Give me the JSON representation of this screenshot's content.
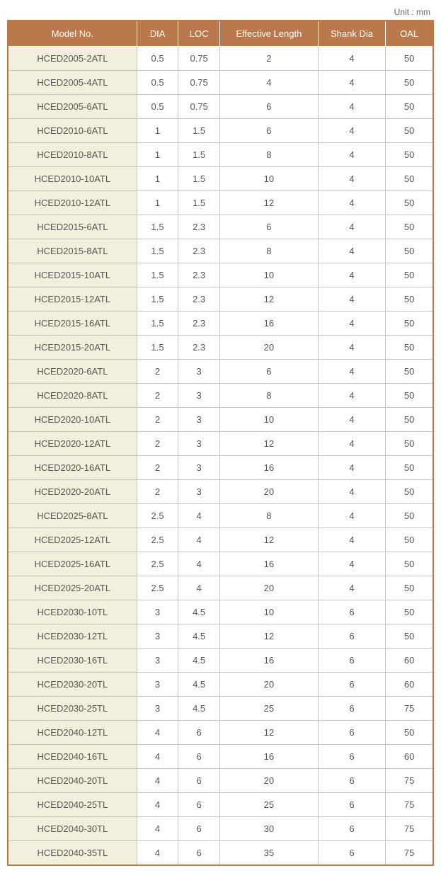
{
  "unit_label": "Unit : mm",
  "columns": [
    "Model No.",
    "DIA",
    "LOC",
    "Effective Length",
    "Shank Dia",
    "OAL"
  ],
  "rows": [
    [
      "HCED2005-2ATL",
      "0.5",
      "0.75",
      "2",
      "4",
      "50"
    ],
    [
      "HCED2005-4ATL",
      "0.5",
      "0.75",
      "4",
      "4",
      "50"
    ],
    [
      "HCED2005-6ATL",
      "0.5",
      "0.75",
      "6",
      "4",
      "50"
    ],
    [
      "HCED2010-6ATL",
      "1",
      "1.5",
      "6",
      "4",
      "50"
    ],
    [
      "HCED2010-8ATL",
      "1",
      "1.5",
      "8",
      "4",
      "50"
    ],
    [
      "HCED2010-10ATL",
      "1",
      "1.5",
      "10",
      "4",
      "50"
    ],
    [
      "HCED2010-12ATL",
      "1",
      "1.5",
      "12",
      "4",
      "50"
    ],
    [
      "HCED2015-6ATL",
      "1.5",
      "2.3",
      "6",
      "4",
      "50"
    ],
    [
      "HCED2015-8ATL",
      "1.5",
      "2.3",
      "8",
      "4",
      "50"
    ],
    [
      "HCED2015-10ATL",
      "1.5",
      "2.3",
      "10",
      "4",
      "50"
    ],
    [
      "HCED2015-12ATL",
      "1.5",
      "2.3",
      "12",
      "4",
      "50"
    ],
    [
      "HCED2015-16ATL",
      "1.5",
      "2.3",
      "16",
      "4",
      "50"
    ],
    [
      "HCED2015-20ATL",
      "1.5",
      "2.3",
      "20",
      "4",
      "50"
    ],
    [
      "HCED2020-6ATL",
      "2",
      "3",
      "6",
      "4",
      "50"
    ],
    [
      "HCED2020-8ATL",
      "2",
      "3",
      "8",
      "4",
      "50"
    ],
    [
      "HCED2020-10ATL",
      "2",
      "3",
      "10",
      "4",
      "50"
    ],
    [
      "HCED2020-12ATL",
      "2",
      "3",
      "12",
      "4",
      "50"
    ],
    [
      "HCED2020-16ATL",
      "2",
      "3",
      "16",
      "4",
      "50"
    ],
    [
      "HCED2020-20ATL",
      "2",
      "3",
      "20",
      "4",
      "50"
    ],
    [
      "HCED2025-8ATL",
      "2.5",
      "4",
      "8",
      "4",
      "50"
    ],
    [
      "HCED2025-12ATL",
      "2.5",
      "4",
      "12",
      "4",
      "50"
    ],
    [
      "HCED2025-16ATL",
      "2.5",
      "4",
      "16",
      "4",
      "50"
    ],
    [
      "HCED2025-20ATL",
      "2.5",
      "4",
      "20",
      "4",
      "50"
    ],
    [
      "HCED2030-10TL",
      "3",
      "4.5",
      "10",
      "6",
      "50"
    ],
    [
      "HCED2030-12TL",
      "3",
      "4.5",
      "12",
      "6",
      "50"
    ],
    [
      "HCED2030-16TL",
      "3",
      "4.5",
      "16",
      "6",
      "60"
    ],
    [
      "HCED2030-20TL",
      "3",
      "4.5",
      "20",
      "6",
      "60"
    ],
    [
      "HCED2030-25TL",
      "3",
      "4.5",
      "25",
      "6",
      "75"
    ],
    [
      "HCED2040-12TL",
      "4",
      "6",
      "12",
      "6",
      "50"
    ],
    [
      "HCED2040-16TL",
      "4",
      "6",
      "16",
      "6",
      "60"
    ],
    [
      "HCED2040-20TL",
      "4",
      "6",
      "20",
      "6",
      "75"
    ],
    [
      "HCED2040-25TL",
      "4",
      "6",
      "25",
      "6",
      "75"
    ],
    [
      "HCED2040-30TL",
      "4",
      "6",
      "30",
      "6",
      "75"
    ],
    [
      "HCED2040-35TL",
      "4",
      "6",
      "35",
      "6",
      "75"
    ]
  ],
  "style": {
    "header_bg": "#b9794c",
    "header_fg": "#ffffff",
    "model_col_bg": "#f2efdc",
    "cell_border": "#c4c4c4",
    "outer_border": "#b9794c",
    "text_color": "#555",
    "font_size_cell": 13,
    "font_size_unit": 12
  }
}
